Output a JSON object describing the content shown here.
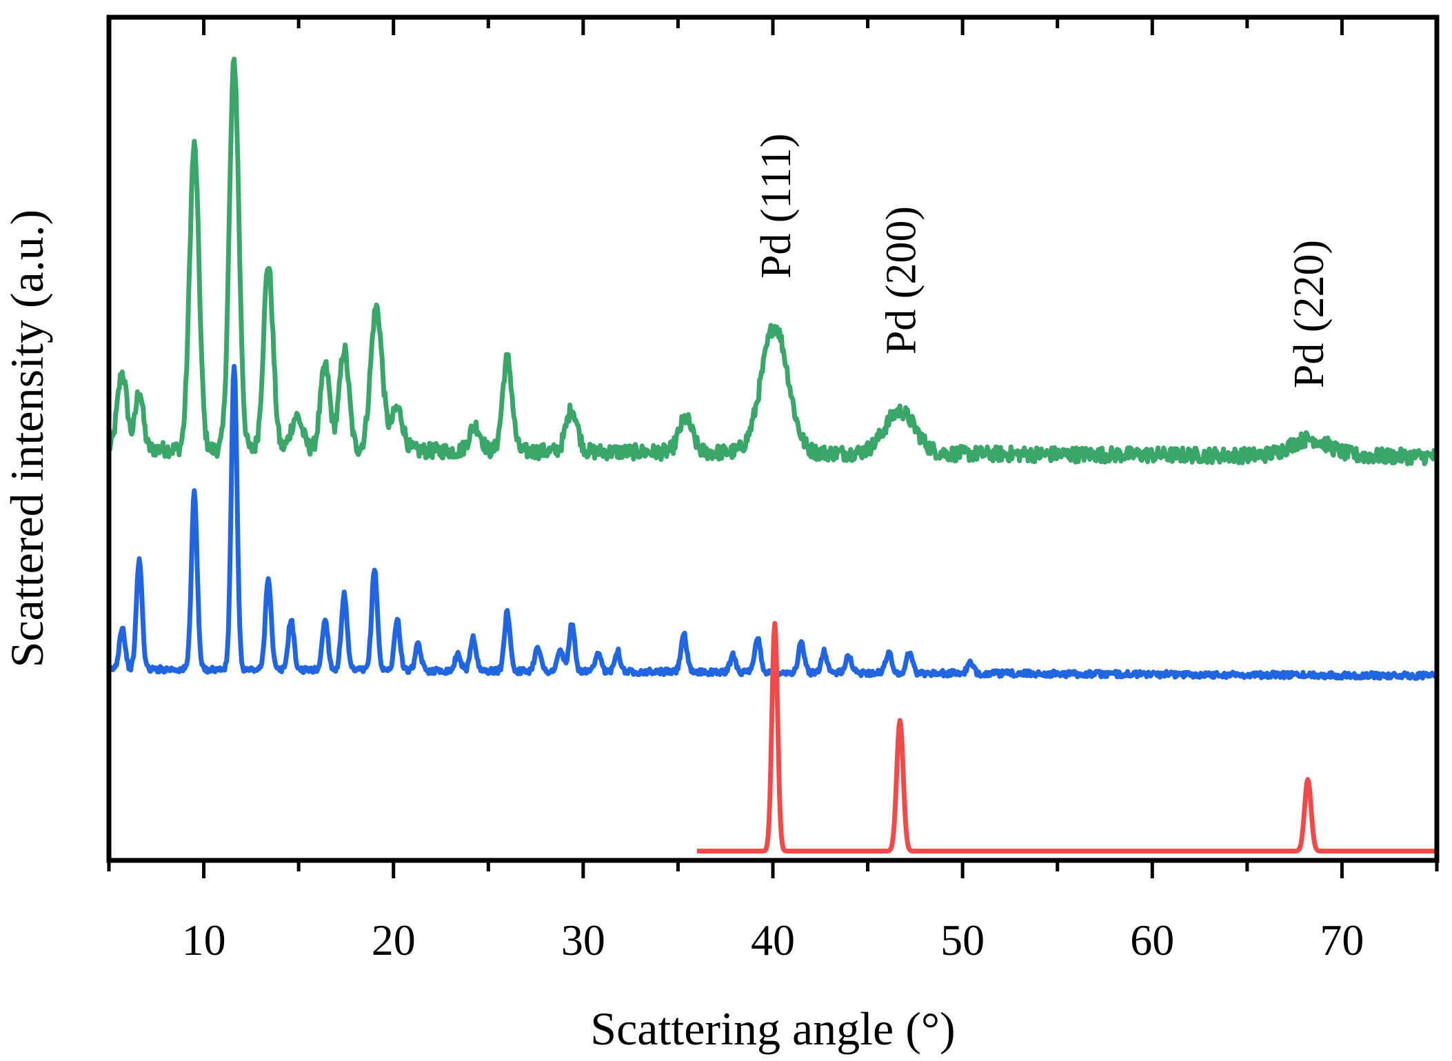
{
  "chart_data": {
    "type": "line",
    "title": "",
    "xlabel": "Scattering angle (°)",
    "ylabel": "Scattered intensity (a.u.)",
    "xlim": [
      5,
      75
    ],
    "ylim": [
      0,
      100
    ],
    "x_ticks": [
      10,
      20,
      30,
      40,
      50,
      60,
      70
    ],
    "y_ticks_labeled": false,
    "grid": false,
    "legend": "none",
    "annotations": [
      {
        "text": "Pd (111)",
        "x": 40.1,
        "y": 69,
        "rotation": -90
      },
      {
        "text": "Pd (200)",
        "x": 46.7,
        "y": 60,
        "rotation": -90
      },
      {
        "text": "Pd (220)",
        "x": 68.2,
        "y": 56,
        "rotation": -90
      }
    ],
    "series": [
      {
        "name": "green",
        "color": "#3aa66a",
        "baseline": 48.8,
        "baseline_end": 47.9,
        "noise": 0.9,
        "x_start": 5,
        "x_end": 75,
        "peaks": [
          {
            "x": 5.7,
            "h": 9,
            "w": 0.25
          },
          {
            "x": 6.6,
            "h": 7,
            "w": 0.2
          },
          {
            "x": 9.5,
            "h": 36,
            "w": 0.25
          },
          {
            "x": 11.6,
            "h": 46,
            "w": 0.25
          },
          {
            "x": 13.4,
            "h": 22,
            "w": 0.25
          },
          {
            "x": 14.9,
            "h": 4,
            "w": 0.3
          },
          {
            "x": 16.4,
            "h": 10,
            "w": 0.25
          },
          {
            "x": 17.4,
            "h": 12,
            "w": 0.25
          },
          {
            "x": 19.1,
            "h": 17,
            "w": 0.3
          },
          {
            "x": 20.2,
            "h": 5,
            "w": 0.3
          },
          {
            "x": 24.3,
            "h": 3,
            "w": 0.3
          },
          {
            "x": 26.0,
            "h": 11,
            "w": 0.25
          },
          {
            "x": 29.4,
            "h": 5,
            "w": 0.3
          },
          {
            "x": 35.4,
            "h": 4,
            "w": 0.35
          },
          {
            "x": 40.1,
            "h": 15,
            "w": 0.7
          },
          {
            "x": 46.7,
            "h": 5,
            "w": 0.8
          },
          {
            "x": 68.3,
            "h": 2,
            "w": 1.0
          }
        ]
      },
      {
        "name": "blue",
        "color": "#2166e0",
        "baseline": 22.7,
        "baseline_end": 21.9,
        "noise": 0.35,
        "x_start": 5,
        "x_end": 75,
        "peaks": [
          {
            "x": 5.7,
            "h": 5,
            "w": 0.15
          },
          {
            "x": 6.6,
            "h": 13,
            "w": 0.15
          },
          {
            "x": 9.5,
            "h": 21,
            "w": 0.15
          },
          {
            "x": 11.6,
            "h": 36,
            "w": 0.15
          },
          {
            "x": 13.4,
            "h": 11,
            "w": 0.15
          },
          {
            "x": 14.6,
            "h": 6,
            "w": 0.15
          },
          {
            "x": 16.4,
            "h": 6,
            "w": 0.15
          },
          {
            "x": 17.4,
            "h": 9,
            "w": 0.15
          },
          {
            "x": 19.0,
            "h": 12,
            "w": 0.15
          },
          {
            "x": 20.2,
            "h": 6,
            "w": 0.15
          },
          {
            "x": 21.3,
            "h": 3,
            "w": 0.15
          },
          {
            "x": 23.4,
            "h": 2,
            "w": 0.15
          },
          {
            "x": 24.2,
            "h": 4,
            "w": 0.15
          },
          {
            "x": 26.0,
            "h": 7,
            "w": 0.15
          },
          {
            "x": 27.6,
            "h": 3,
            "w": 0.15
          },
          {
            "x": 28.8,
            "h": 2.5,
            "w": 0.15
          },
          {
            "x": 29.4,
            "h": 5.5,
            "w": 0.15
          },
          {
            "x": 30.8,
            "h": 2,
            "w": 0.15
          },
          {
            "x": 31.8,
            "h": 2.5,
            "w": 0.15
          },
          {
            "x": 35.3,
            "h": 4.5,
            "w": 0.15
          },
          {
            "x": 37.9,
            "h": 2,
            "w": 0.15
          },
          {
            "x": 39.2,
            "h": 4,
            "w": 0.15
          },
          {
            "x": 41.5,
            "h": 3.5,
            "w": 0.15
          },
          {
            "x": 42.7,
            "h": 2.5,
            "w": 0.15
          },
          {
            "x": 44.0,
            "h": 2,
            "w": 0.15
          },
          {
            "x": 46.1,
            "h": 2.5,
            "w": 0.15
          },
          {
            "x": 47.2,
            "h": 2.5,
            "w": 0.15
          },
          {
            "x": 50.4,
            "h": 1.2,
            "w": 0.15
          }
        ]
      },
      {
        "name": "red",
        "color": "#f04a4a",
        "baseline": 1.1,
        "baseline_end": 1.1,
        "noise": 0,
        "x_start": 36,
        "x_end": 75,
        "peaks": [
          {
            "x": 40.1,
            "h": 27,
            "w": 0.15
          },
          {
            "x": 46.7,
            "h": 15.5,
            "w": 0.17
          },
          {
            "x": 68.2,
            "h": 8.5,
            "w": 0.17
          }
        ]
      }
    ]
  }
}
